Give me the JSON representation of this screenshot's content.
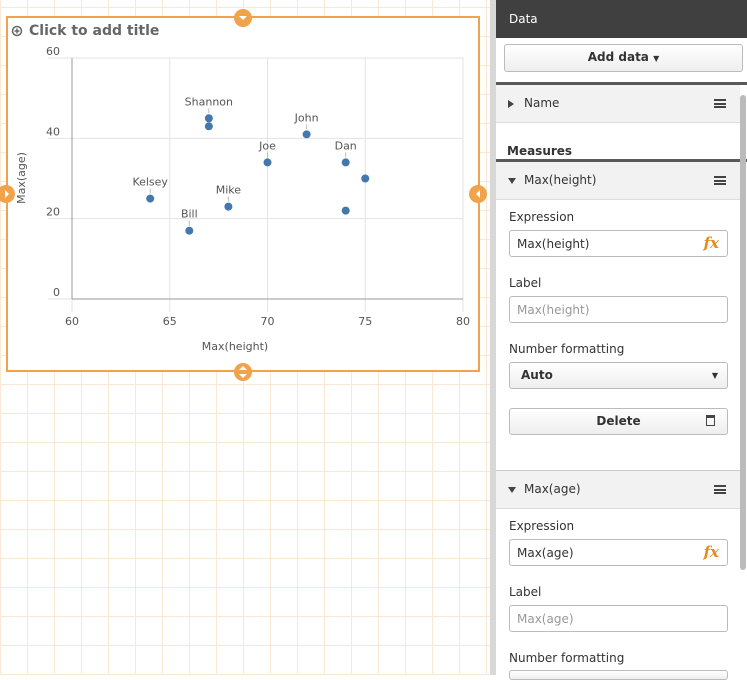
{
  "chart_data": {
    "type": "scatter",
    "title": "Click to add title",
    "x_label": "Max(height)",
    "y_label": "Max(age)",
    "categories": [
      "Kelsey",
      "Bill",
      "Shannon",
      null,
      "Mike",
      "Joe",
      "John",
      "Dan",
      null,
      null
    ],
    "x": [
      64,
      66,
      67,
      67,
      68,
      70,
      72,
      74,
      74,
      75
    ],
    "values": [
      25,
      17,
      45,
      43,
      23,
      34,
      41,
      34,
      22,
      30
    ],
    "color": "#4477aa",
    "xlim": [
      60,
      80
    ],
    "xticks": [
      60,
      65,
      70,
      75,
      80
    ],
    "ylim": [
      0,
      60
    ],
    "yticks": [
      0,
      20,
      40,
      60
    ],
    "grid": true
  },
  "panel": {
    "header": "Data",
    "add_data": "Add data",
    "dimension": "Name",
    "measures_heading": "Measures",
    "measures": [
      {
        "name": "Max(height)",
        "expression_label": "Expression",
        "expression": "Max(height)",
        "fx": "fx",
        "label_label": "Label",
        "label_placeholder": "Max(height)",
        "format_label": "Number formatting",
        "format": "Auto",
        "delete": "Delete"
      },
      {
        "name": "Max(age)",
        "expression_label": "Expression",
        "expression": "Max(age)",
        "fx": "fx",
        "label_label": "Label",
        "label_placeholder": "Max(age)",
        "format_label": "Number formatting"
      }
    ]
  }
}
